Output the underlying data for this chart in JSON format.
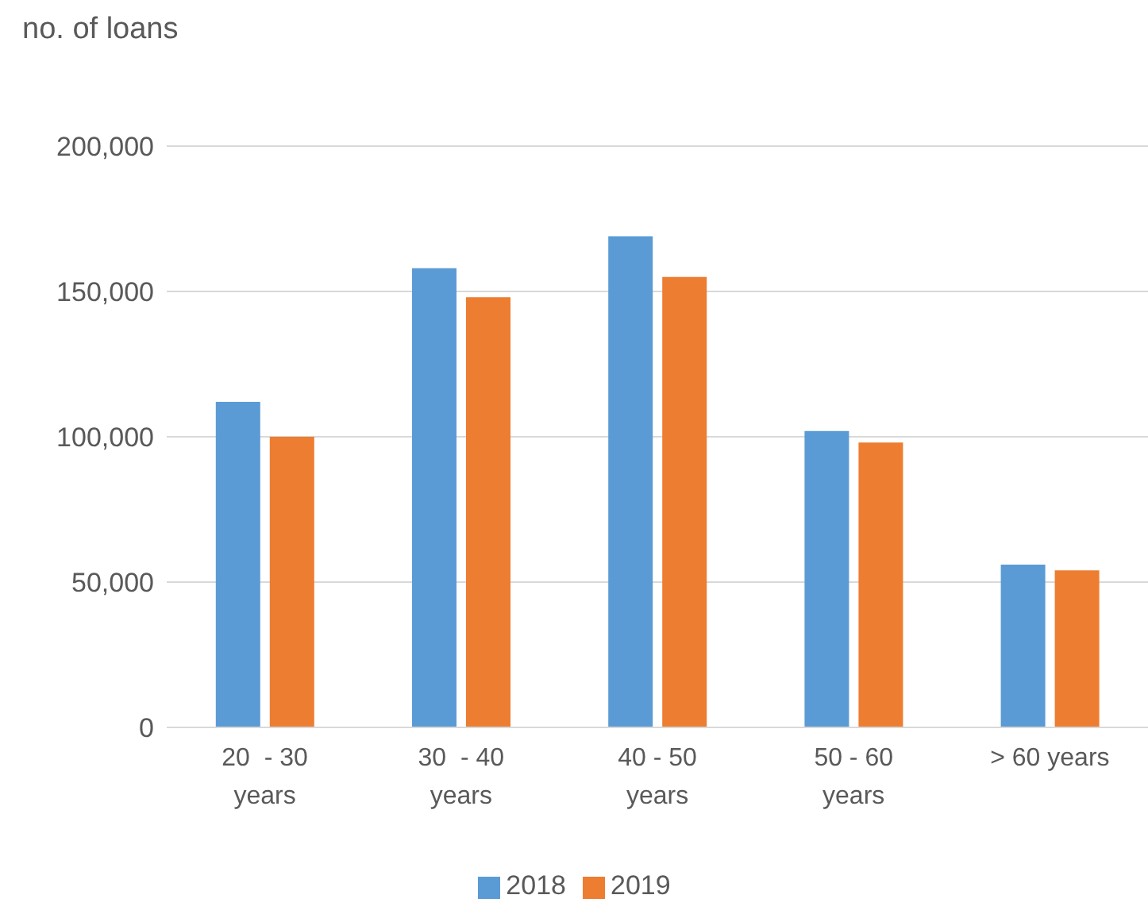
{
  "chart_data": {
    "type": "bar",
    "ylabel": "no. of loans",
    "categories": [
      "20  - 30 years",
      "30  - 40 years",
      "40 - 50 years",
      "50 - 60 years",
      "> 60 years"
    ],
    "series": [
      {
        "name": "2018",
        "color": "#5b9bd5",
        "values": [
          112000,
          158000,
          169000,
          102000,
          56000
        ]
      },
      {
        "name": "2019",
        "color": "#ed7d31",
        "values": [
          100000,
          148000,
          155000,
          98000,
          54000
        ]
      }
    ],
    "ylim": [
      0,
      200000
    ],
    "yticks": [
      {
        "value": 0,
        "label": "0"
      },
      {
        "value": 50000,
        "label": "50,000"
      },
      {
        "value": 100000,
        "label": "100,000"
      },
      {
        "value": 150000,
        "label": "150,000"
      },
      {
        "value": 200000,
        "label": "200,000"
      }
    ],
    "grid": "y",
    "legend": "bottom"
  }
}
